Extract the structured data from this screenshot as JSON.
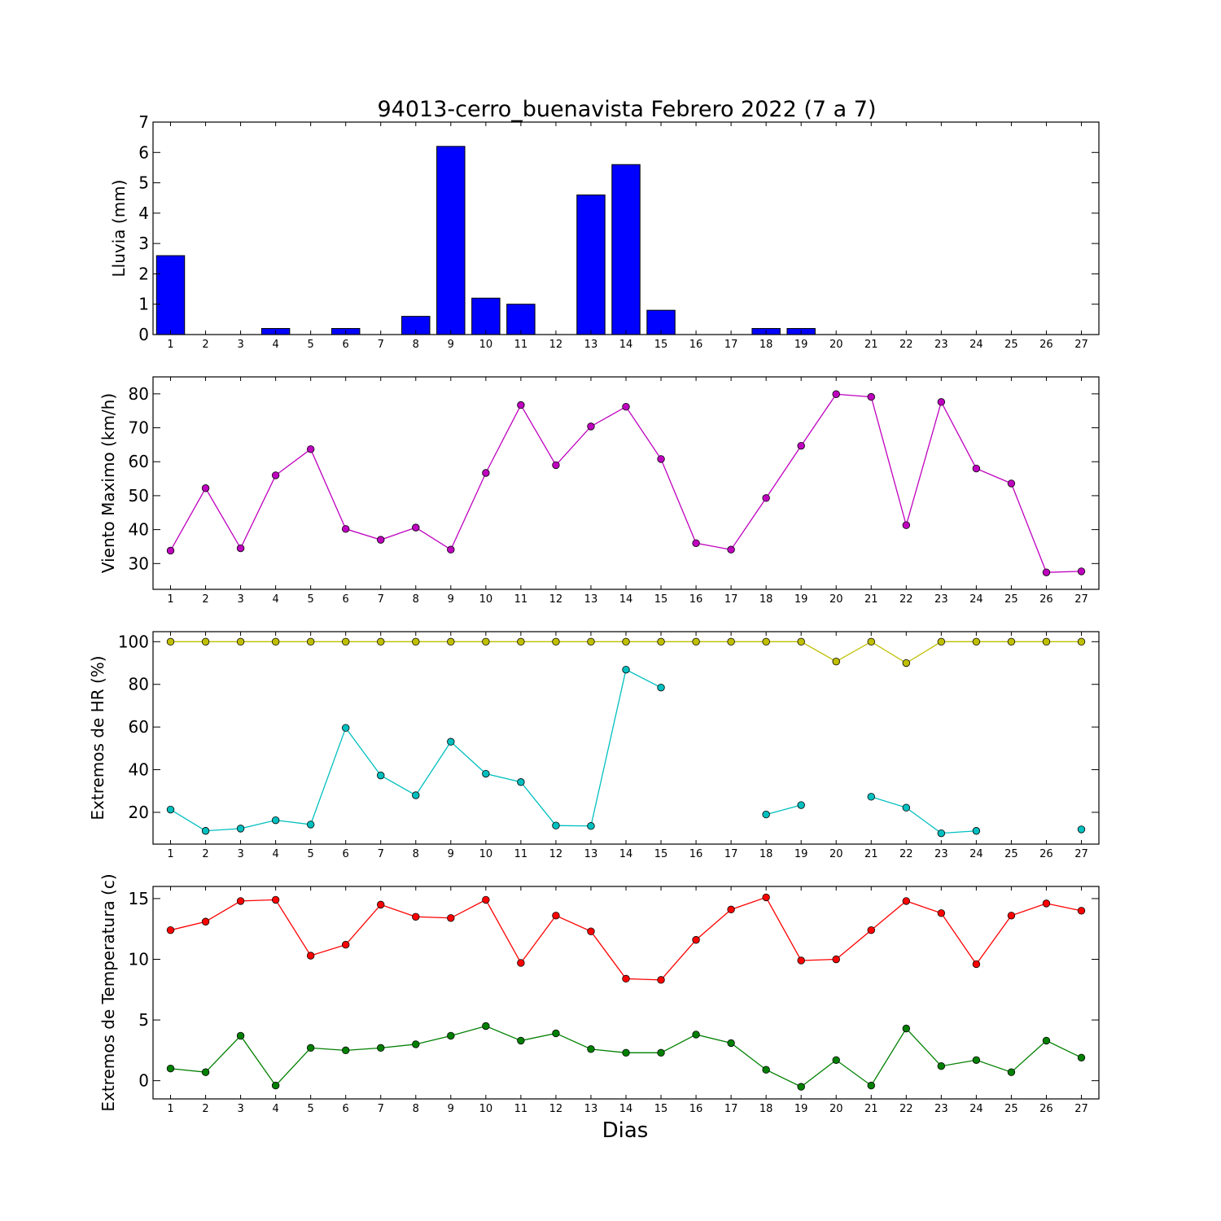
{
  "title": "94013-cerro_buenavista Febrero 2022  (7 a 7)",
  "xlabel": "Dias",
  "days": [
    1,
    2,
    3,
    4,
    5,
    6,
    7,
    8,
    9,
    10,
    11,
    12,
    13,
    14,
    15,
    16,
    17,
    18,
    19,
    20,
    21,
    22,
    23,
    24,
    25,
    26,
    27
  ],
  "chart_data": [
    {
      "type": "bar",
      "ylabel": "Lluvia (mm)",
      "ylim": [
        0,
        7
      ],
      "yticks": [
        0,
        1,
        2,
        3,
        4,
        5,
        6,
        7
      ],
      "grid": false,
      "series": [
        {
          "color": "#0000ff",
          "values": [
            2.6,
            0,
            0,
            0.2,
            0,
            0.2,
            0,
            0.6,
            6.2,
            1.2,
            1.0,
            0,
            4.6,
            5.6,
            0.8,
            0,
            0,
            0.2,
            0.2,
            0,
            0,
            0,
            0,
            0,
            0,
            0,
            0
          ]
        }
      ]
    },
    {
      "type": "line",
      "ylabel": "Viento Maximo (km/h)",
      "ylim": [
        22.4,
        85
      ],
      "yticks": [
        30,
        40,
        50,
        60,
        70,
        80
      ],
      "grid": false,
      "series": [
        {
          "color": "#bf00bf",
          "values": [
            33.8,
            52.2,
            34.5,
            56.0,
            63.7,
            40.2,
            37.0,
            40.6,
            34.1,
            56.7,
            76.7,
            59.0,
            70.4,
            76.2,
            60.8,
            36.0,
            34.1,
            49.3,
            64.7,
            79.9,
            79.1,
            41.3,
            77.6,
            58.0,
            53.6,
            27.4,
            27.7
          ]
        }
      ]
    },
    {
      "type": "line",
      "ylabel": "Extremos de HR (%)",
      "ylim": [
        5.1,
        104.7
      ],
      "yticks": [
        20,
        40,
        60,
        80,
        100
      ],
      "grid": false,
      "series": [
        {
          "color": "#bfbf00",
          "values": [
            100,
            100,
            100,
            100,
            100,
            100,
            100,
            100,
            100,
            100,
            100,
            100,
            100,
            100,
            100,
            100,
            100,
            100,
            100,
            90.7,
            100,
            90.0,
            100,
            100,
            100,
            100,
            100
          ]
        },
        {
          "color": "#00bfbf",
          "values": [
            21.3,
            11.3,
            12.4,
            16.3,
            14.3,
            59.6,
            37.3,
            28.0,
            53.1,
            38.1,
            34.2,
            13.8,
            13.6,
            86.9,
            78.5,
            null,
            null,
            19.0,
            23.4,
            null,
            27.3,
            22.2,
            10.2,
            11.3,
            null,
            null,
            12.0
          ]
        }
      ]
    },
    {
      "type": "line",
      "ylabel": "Extremos de Temperatura (c)",
      "ylim": [
        -1.5,
        16.0
      ],
      "yticks": [
        0,
        5,
        10,
        15
      ],
      "grid": false,
      "series": [
        {
          "color": "#ff0000",
          "values": [
            12.4,
            13.1,
            14.8,
            14.9,
            10.3,
            11.2,
            14.5,
            13.5,
            13.4,
            14.9,
            9.7,
            13.6,
            12.3,
            8.4,
            8.3,
            11.6,
            14.1,
            15.1,
            9.9,
            10.0,
            12.4,
            14.8,
            13.8,
            9.6,
            13.6,
            14.6,
            14.0
          ]
        },
        {
          "color": "#008000",
          "values": [
            1.0,
            0.7,
            3.7,
            -0.4,
            2.7,
            2.5,
            2.7,
            3.0,
            3.7,
            4.5,
            3.3,
            3.9,
            2.6,
            2.3,
            2.3,
            3.8,
            3.1,
            0.9,
            -0.5,
            1.7,
            -0.4,
            4.3,
            1.2,
            1.7,
            0.7,
            3.3,
            1.9
          ]
        }
      ]
    }
  ]
}
